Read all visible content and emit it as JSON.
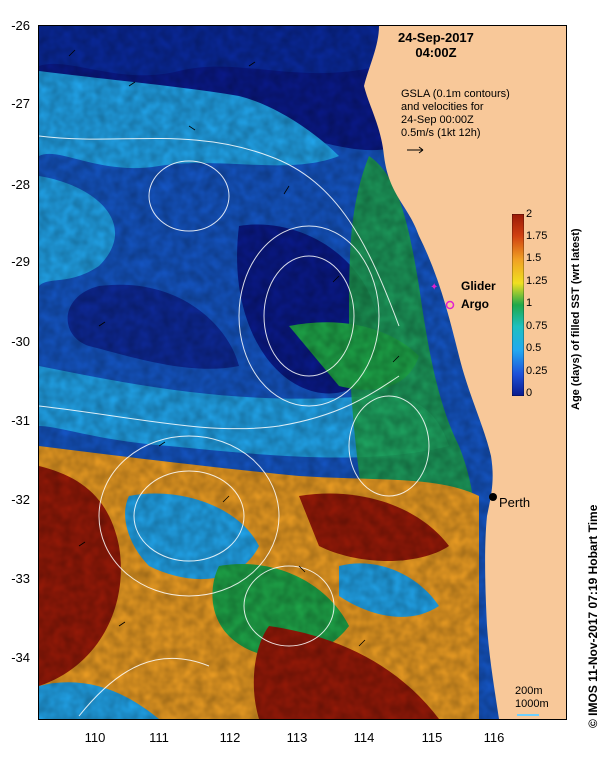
{
  "map": {
    "date": "24-Sep-2017",
    "time": "04:00Z",
    "annotation_lines": [
      "GSLA (0.1m contours)",
      "and velocities for",
      "24-Sep 00:00Z",
      "0.5m/s (1kt 12h)"
    ],
    "y_ticks": [
      "-26",
      "-27",
      "-28",
      "-29",
      "-30",
      "-31",
      "-32",
      "-33",
      "-34"
    ],
    "x_ticks": [
      "110",
      "111",
      "112",
      "113",
      "114",
      "115",
      "116"
    ],
    "legend": {
      "glider": "Glider",
      "argo": "Argo"
    },
    "place": "Perth",
    "depth_labels": [
      "200m",
      "1000m"
    ],
    "colorbar": {
      "title": "Age (days) of filled SST (wrt latest)",
      "ticks": [
        "2",
        "1.75",
        "1.5",
        "1.25",
        "1",
        "0.75",
        "0.5",
        "0.25",
        "0"
      ]
    },
    "credit": "© IMOS 11-Nov-2017 07:19 Hobart Time",
    "colors": {
      "land": "#f8c899",
      "deep_blue": "#0a1a8c",
      "orange": "#f0a024",
      "red": "#9a1a08",
      "green": "#1fa84a",
      "cyan": "#22a8f0"
    }
  }
}
